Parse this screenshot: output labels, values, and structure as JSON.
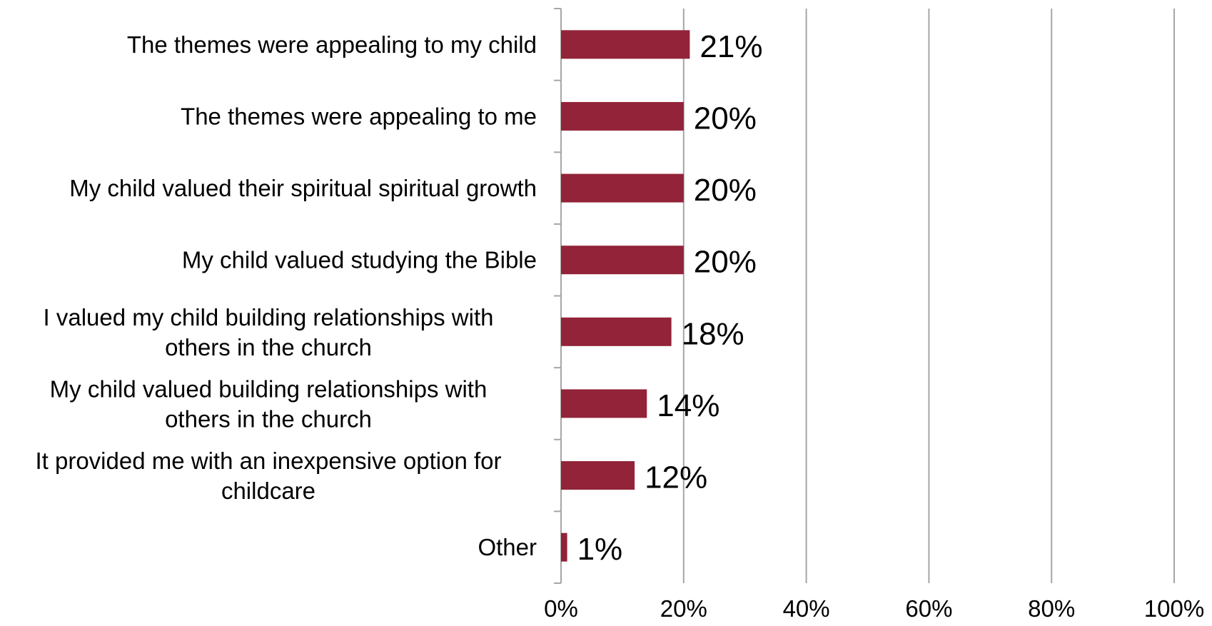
{
  "chart_data": {
    "type": "bar",
    "orientation": "horizontal",
    "categories": [
      "The themes were appealing to my child",
      "The themes were appealing to me",
      "My child valued their spiritual spiritual growth",
      "My child valued studying the Bible",
      "I valued my child building relationships with others in the church",
      "My child valued building relationships with others in the church",
      "It provided me with an inexpensive option for childcare",
      "Other"
    ],
    "category_lines": [
      [
        "The themes were appealing to my child"
      ],
      [
        "The themes were appealing to me"
      ],
      [
        "My child valued their spiritual spiritual growth"
      ],
      [
        "My child valued studying the Bible"
      ],
      [
        "I valued my child building relationships with",
        "others in the church"
      ],
      [
        "My child valued building relationships with",
        "others in the church"
      ],
      [
        "It provided me with an inexpensive option for",
        "childcare"
      ],
      [
        "Other"
      ]
    ],
    "values": [
      21,
      20,
      20,
      20,
      18,
      14,
      12,
      1
    ],
    "data_labels": [
      "21%",
      "20%",
      "20%",
      "20%",
      "18%",
      "14%",
      "12%",
      "1%"
    ],
    "x_ticks": [
      0,
      20,
      40,
      60,
      80,
      100
    ],
    "x_tick_labels": [
      "0%",
      "20%",
      "40%",
      "60%",
      "80%",
      "100%"
    ],
    "xlim": [
      0,
      100
    ],
    "grid": "vertical",
    "legend": "none",
    "bar_color": "#922338",
    "grid_color": "#a6a6a6",
    "title": "",
    "xlabel": "",
    "ylabel": ""
  }
}
